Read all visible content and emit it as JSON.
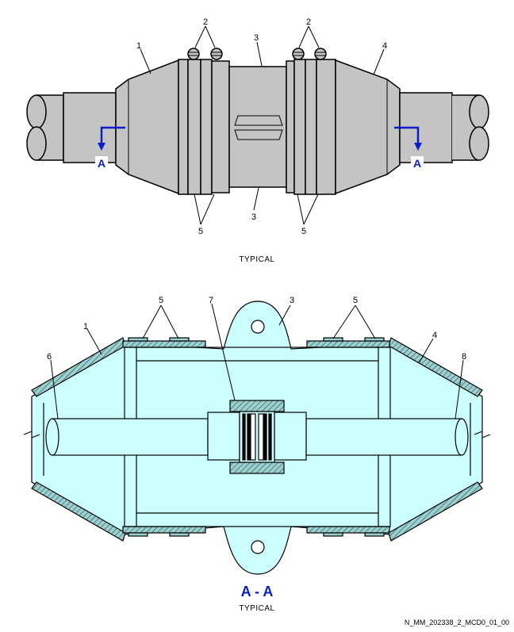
{
  "top_view": {
    "callouts": {
      "c1": "1",
      "c2a": "2",
      "c2b": "2",
      "c3a": "3",
      "c3b": "3",
      "c4": "4",
      "c5a": "5",
      "c5b": "5"
    },
    "section_marks": {
      "left": "A",
      "right": "A"
    },
    "caption": "TYPICAL"
  },
  "section_view": {
    "callouts": {
      "c1": "1",
      "c3": "3",
      "c4": "4",
      "c5a": "5",
      "c5b": "5",
      "c6": "6",
      "c7": "7",
      "c8": "8"
    },
    "title": "A - A",
    "caption": "TYPICAL"
  },
  "reference": "N_MM_202338_2_MCD0_01_00",
  "colors": {
    "body_gray": "#c4c4c4",
    "section_fill": "#ccffff",
    "section_mark": "#0a1ccc",
    "hatch_fill": "#9cd0d0"
  }
}
